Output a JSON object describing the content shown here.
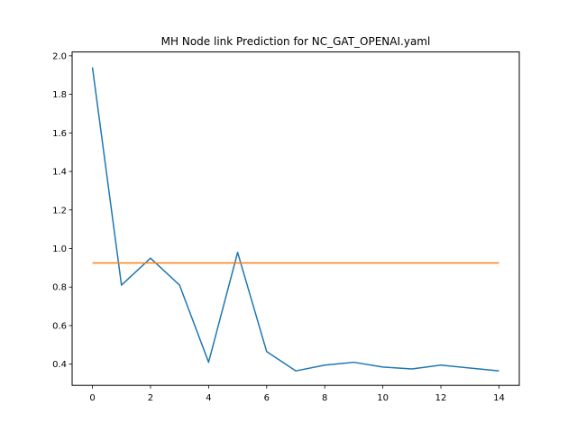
{
  "chart_data": {
    "type": "line",
    "title": "MH Node link Prediction for NC_GAT_OPENAI.yaml",
    "xlabel": "",
    "ylabel": "",
    "xlim": [
      -0.7,
      14.7
    ],
    "ylim": [
      0.29,
      2.02
    ],
    "x_ticks": [
      0,
      2,
      4,
      6,
      8,
      10,
      12,
      14
    ],
    "y_ticks": [
      0.4,
      0.6,
      0.8,
      1.0,
      1.2,
      1.4,
      1.6,
      1.8,
      2.0
    ],
    "grid": false,
    "series": [
      {
        "color": "#1f77b4",
        "x": [
          0,
          1,
          2,
          3,
          4,
          5,
          6,
          7,
          8,
          9,
          10,
          11,
          12,
          13,
          14
        ],
        "values": [
          1.94,
          0.81,
          0.95,
          0.81,
          0.41,
          0.98,
          0.465,
          0.365,
          0.395,
          0.41,
          0.385,
          0.375,
          0.395,
          0.38,
          0.365
        ]
      },
      {
        "color": "#ff7f0e",
        "x": [
          0,
          14
        ],
        "values": [
          0.925,
          0.925
        ]
      }
    ]
  }
}
